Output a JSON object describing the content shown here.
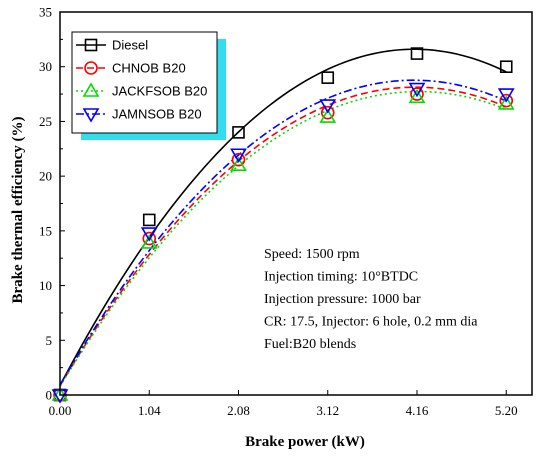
{
  "chart_data": {
    "type": "scatter",
    "xlabel": "Brake power (kW)",
    "ylabel": "Brake thermal efficiency (%)",
    "xlim": [
      0,
      5.5
    ],
    "ylim": [
      0,
      35
    ],
    "xticks": [
      0.0,
      1.04,
      2.08,
      3.12,
      4.16,
      5.2
    ],
    "xtick_labels": [
      "0.00",
      "1.04",
      "2.08",
      "3.12",
      "4.16",
      "5.20"
    ],
    "yticks": [
      0,
      5,
      10,
      15,
      20,
      25,
      30,
      35
    ],
    "ytick_labels": [
      "0",
      "5",
      "10",
      "15",
      "20",
      "25",
      "30",
      "35"
    ],
    "x": [
      0.0,
      1.04,
      2.08,
      3.12,
      4.16,
      5.2
    ],
    "legend_position": "top-left",
    "series": [
      {
        "name": "Diesel",
        "marker": "square",
        "color": "#000000",
        "line_style": "solid",
        "values": [
          0,
          16.0,
          24.0,
          29.0,
          31.2,
          30.0
        ]
      },
      {
        "name": "CHNOB B20",
        "marker": "circle",
        "color": "#ff0000",
        "line_style": "dash",
        "values": [
          0,
          14.3,
          21.5,
          25.8,
          27.5,
          26.9
        ]
      },
      {
        "name": "JACKFSOB B20",
        "marker": "triangle-up",
        "color": "#00dd00",
        "line_style": "dot",
        "values": [
          0,
          13.9,
          21.0,
          25.4,
          27.2,
          26.6
        ]
      },
      {
        "name": "JAMNSOB B20",
        "marker": "triangle-down",
        "color": "#0000ff",
        "line_style": "dashdot",
        "values": [
          0,
          14.8,
          22.0,
          26.5,
          28.0,
          27.5
        ]
      }
    ],
    "annotations": [
      "Speed: 1500 rpm",
      "Injection timing: 10°BTDC",
      "Injection pressure: 1000 bar",
      "CR: 17.5, Injector: 6 hole, 0.2 mm dia",
      "Fuel:B20 blends"
    ],
    "colors": {
      "legend_shadow": "#33ddee"
    }
  }
}
